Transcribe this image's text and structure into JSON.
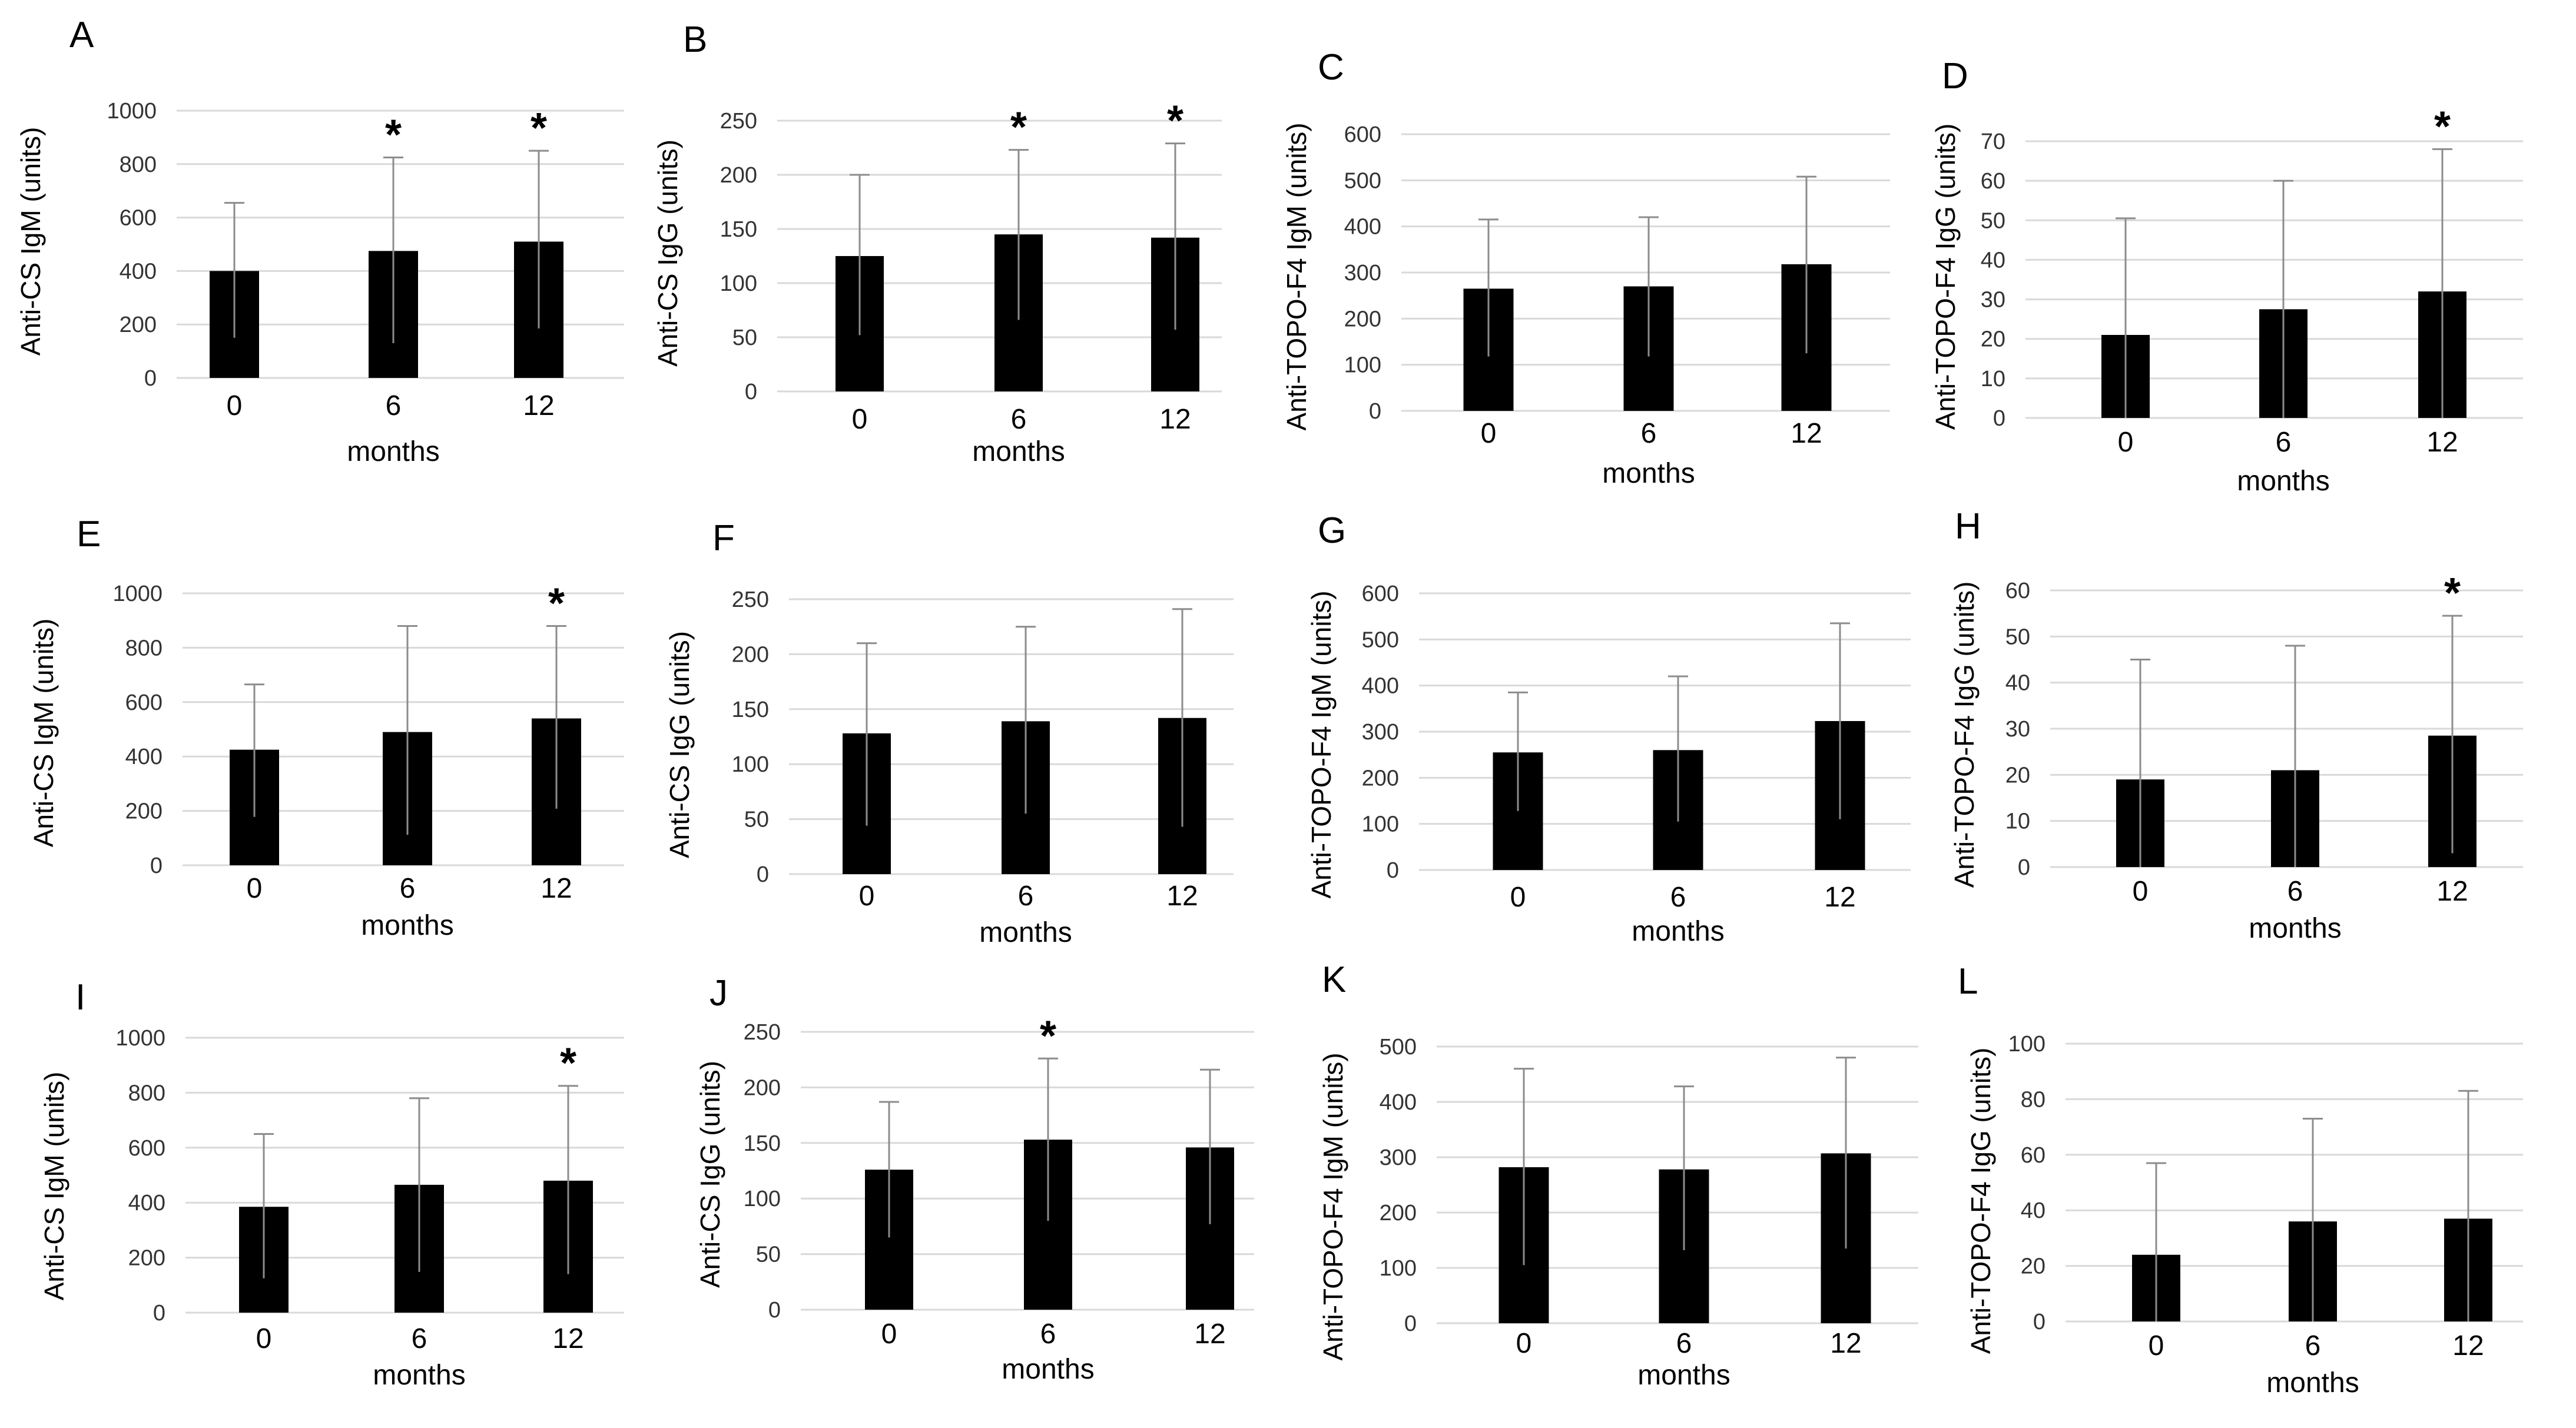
{
  "chart_data": [
    {
      "type": "bar",
      "panel_label": "A",
      "ylabel": "Anti-CS IgM (units)",
      "xlabel": "months",
      "categories": [
        "0",
        "6",
        "12"
      ],
      "values": [
        400,
        475,
        510
      ],
      "error_upper": [
        655,
        825,
        850
      ],
      "error_lower": [
        150,
        130,
        185
      ],
      "ylim": [
        0,
        1000
      ],
      "yticks": [
        "0",
        "200",
        "400",
        "600",
        "800",
        "1000"
      ],
      "significance": [
        "",
        "*",
        "*"
      ],
      "grid": true
    },
    {
      "type": "bar",
      "panel_label": "B",
      "ylabel": "Anti-CS IgG (units)",
      "xlabel": "months",
      "categories": [
        "0",
        "6",
        "12"
      ],
      "values": [
        125,
        145,
        142
      ],
      "error_upper": [
        200,
        223,
        229
      ],
      "error_lower": [
        52,
        66,
        57
      ],
      "ylim": [
        0,
        250
      ],
      "yticks": [
        "0",
        "50",
        "100",
        "150",
        "200",
        "250"
      ],
      "significance": [
        "",
        "*",
        "*"
      ],
      "grid": true
    },
    {
      "type": "bar",
      "panel_label": "C",
      "ylabel": "Anti-TOPO-F4 IgM (units)",
      "xlabel": "months",
      "categories": [
        "0",
        "6",
        "12"
      ],
      "values": [
        265,
        270,
        318
      ],
      "error_upper": [
        415,
        420,
        508
      ],
      "error_lower": [
        118,
        118,
        125
      ],
      "ylim": [
        0,
        600
      ],
      "yticks": [
        "0",
        "100",
        "200",
        "300",
        "400",
        "500",
        "600"
      ],
      "significance": [
        "",
        "",
        ""
      ],
      "grid": true
    },
    {
      "type": "bar",
      "panel_label": "D",
      "ylabel": "Anti-TOPO-F4 IgG (units)",
      "xlabel": "months",
      "categories": [
        "0",
        "6",
        "12"
      ],
      "values": [
        21,
        27.5,
        32
      ],
      "error_upper": [
        50.5,
        60,
        68
      ],
      "error_lower": [
        0,
        0,
        0
      ],
      "ylim": [
        0,
        70
      ],
      "yticks": [
        "0",
        "10",
        "20",
        "30",
        "40",
        "50",
        "60",
        "70"
      ],
      "significance": [
        "",
        "",
        "*"
      ],
      "grid": true
    },
    {
      "type": "bar",
      "panel_label": "E",
      "ylabel": "Anti-CS IgM (units)",
      "xlabel": "months",
      "categories": [
        "0",
        "6",
        "12"
      ],
      "values": [
        425,
        490,
        540
      ],
      "error_upper": [
        665,
        880,
        880
      ],
      "error_lower": [
        178,
        112,
        208
      ],
      "ylim": [
        0,
        1000
      ],
      "yticks": [
        "0",
        "200",
        "400",
        "600",
        "800",
        "1000"
      ],
      "significance": [
        "",
        "",
        "*"
      ],
      "grid": true
    },
    {
      "type": "bar",
      "panel_label": "F",
      "ylabel": "Anti-CS IgG (units)",
      "xlabel": "months",
      "categories": [
        "0",
        "6",
        "12"
      ],
      "values": [
        128,
        139,
        142
      ],
      "error_upper": [
        210,
        225,
        241
      ],
      "error_lower": [
        44,
        55,
        43
      ],
      "ylim": [
        0,
        250
      ],
      "yticks": [
        "0",
        "50",
        "100",
        "150",
        "200",
        "250"
      ],
      "significance": [
        "",
        "",
        ""
      ],
      "grid": true
    },
    {
      "type": "bar",
      "panel_label": "G",
      "ylabel": "Anti-TOPO-F4 IgM (units)",
      "xlabel": "months",
      "categories": [
        "0",
        "6",
        "12"
      ],
      "values": [
        255,
        260,
        323
      ],
      "error_upper": [
        385,
        420,
        535
      ],
      "error_lower": [
        128,
        105,
        110
      ],
      "ylim": [
        0,
        600
      ],
      "yticks": [
        "0",
        "100",
        "200",
        "300",
        "400",
        "500",
        "600"
      ],
      "significance": [
        "",
        "",
        ""
      ],
      "grid": true
    },
    {
      "type": "bar",
      "panel_label": "H",
      "ylabel": "Anti-TOPO-F4 IgG (units)",
      "xlabel": "months",
      "categories": [
        "0",
        "6",
        "12"
      ],
      "values": [
        19,
        21,
        28.5
      ],
      "error_upper": [
        45,
        48,
        54.5
      ],
      "error_lower": [
        0,
        0,
        3
      ],
      "ylim": [
        0,
        60
      ],
      "yticks": [
        "0",
        "10",
        "20",
        "30",
        "40",
        "50",
        "60"
      ],
      "significance": [
        "",
        "",
        "*"
      ],
      "grid": true
    },
    {
      "type": "bar",
      "panel_label": "I",
      "ylabel": "Anti-CS IgM (units)",
      "xlabel": "months",
      "categories": [
        "0",
        "6",
        "12"
      ],
      "values": [
        385,
        465,
        480
      ],
      "error_upper": [
        650,
        780,
        825
      ],
      "error_lower": [
        125,
        148,
        140
      ],
      "ylim": [
        0,
        1000
      ],
      "yticks": [
        "0",
        "200",
        "400",
        "600",
        "800",
        "1000"
      ],
      "significance": [
        "",
        "",
        "*"
      ],
      "grid": true
    },
    {
      "type": "bar",
      "panel_label": "J",
      "ylabel": "Anti-CS IgG (units)",
      "xlabel": "months",
      "categories": [
        "0",
        "6",
        "12"
      ],
      "values": [
        126,
        153,
        146
      ],
      "error_upper": [
        187,
        226,
        216
      ],
      "error_lower": [
        65,
        80,
        77
      ],
      "ylim": [
        0,
        250
      ],
      "yticks": [
        "0",
        "50",
        "100",
        "150",
        "200",
        "250"
      ],
      "significance": [
        "",
        "*",
        ""
      ],
      "grid": true
    },
    {
      "type": "bar",
      "panel_label": "K",
      "ylabel": "Anti-TOPO-F4 IgM (units)",
      "xlabel": "months",
      "categories": [
        "0",
        "6",
        "12"
      ],
      "values": [
        282,
        278,
        307
      ],
      "error_upper": [
        460,
        428,
        480
      ],
      "error_lower": [
        105,
        132,
        135
      ],
      "ylim": [
        0,
        500
      ],
      "yticks": [
        "0",
        "100",
        "200",
        "300",
        "400",
        "500"
      ],
      "significance": [
        "",
        "",
        ""
      ],
      "grid": true
    },
    {
      "type": "bar",
      "panel_label": "L",
      "ylabel": "Anti-TOPO-F4 IgG (units)",
      "xlabel": "months",
      "categories": [
        "0",
        "6",
        "12"
      ],
      "values": [
        24,
        36,
        37
      ],
      "error_upper": [
        57,
        73,
        83
      ],
      "error_lower": [
        0,
        0,
        0
      ],
      "ylim": [
        0,
        100
      ],
      "yticks": [
        "0",
        "20",
        "40",
        "60",
        "80",
        "100"
      ],
      "significance": [
        "",
        "",
        ""
      ],
      "grid": true
    }
  ]
}
